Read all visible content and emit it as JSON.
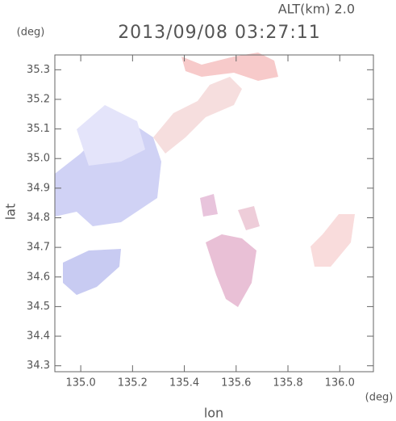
{
  "chart_data": {
    "type": "map",
    "title": "2013/09/08 03:27:11",
    "subtitle": "ALT(km) 2.0",
    "ylabel": "lat",
    "xlabel": "lon",
    "yunit": "(deg)",
    "xunit": "(deg)",
    "xlim": [
      134.9,
      136.13
    ],
    "ylim": [
      34.28,
      35.35
    ],
    "xticks": [
      {
        "value": 135.0,
        "label": "135.0"
      },
      135.2,
      135.4,
      135.6,
      135.8,
      {
        "value": 136.0,
        "label": "136.0"
      }
    ],
    "yticks": [
      34.3,
      34.4,
      34.5,
      34.6,
      34.7,
      34.8,
      34.9,
      {
        "value": 35.0,
        "label": "35.0"
      },
      35.1,
      35.2,
      35.3
    ]
  }
}
